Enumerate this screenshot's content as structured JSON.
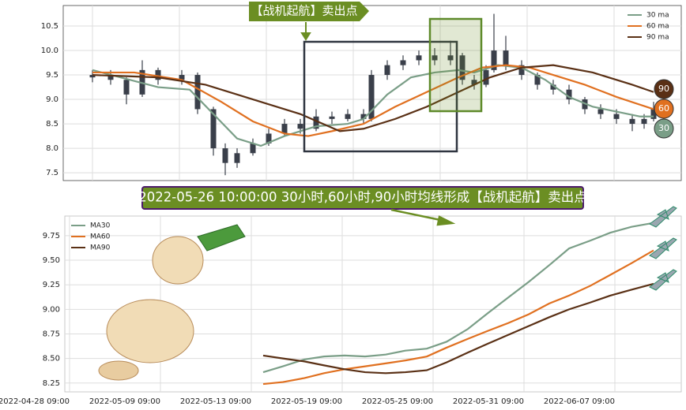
{
  "chart_data": [
    {
      "type": "candlestick",
      "annotation": "【战机起航】卖出点",
      "legend": "upper right",
      "grid": true,
      "xlim": [
        -37,
        745
      ],
      "xticks": [
        0,
        110,
        220,
        330,
        440,
        550,
        660
      ],
      "ylim": [
        7.34,
        10.92
      ],
      "yticks": [
        7.5,
        {
          "value": 8,
          "label": "8.0"
        },
        8.5,
        {
          "value": 9,
          "label": "9.0"
        },
        9.5,
        {
          "value": 10,
          "label": "10.0"
        },
        10.5
      ],
      "candle_color": "#3a3f4a",
      "x": [
        0,
        23,
        43,
        63,
        83,
        113,
        133,
        153,
        168,
        183,
        203,
        223,
        243,
        263,
        283,
        303,
        323,
        343,
        353,
        373,
        393,
        413,
        433,
        453,
        468,
        483,
        498,
        508,
        523,
        543,
        563,
        583,
        603,
        623,
        643,
        663,
        683,
        698,
        710
      ],
      "open": [
        9.45,
        9.5,
        9.4,
        9.1,
        9.6,
        9.4,
        9.5,
        8.8,
        8.0,
        7.7,
        7.9,
        8.1,
        8.3,
        8.5,
        8.4,
        8.65,
        8.6,
        8.7,
        8.6,
        9.5,
        9.7,
        9.8,
        9.9,
        9.8,
        9.9,
        9.4,
        9.3,
        9.6,
        10.0,
        9.7,
        9.5,
        9.3,
        9.2,
        9.0,
        8.8,
        8.7,
        8.6,
        8.5,
        8.6
      ],
      "high": [
        9.6,
        9.6,
        9.45,
        9.8,
        9.65,
        9.6,
        9.55,
        8.85,
        8.1,
        8.0,
        8.2,
        8.4,
        8.6,
        8.6,
        8.8,
        8.75,
        8.8,
        8.8,
        9.6,
        9.8,
        9.9,
        10.0,
        10.05,
        10.2,
        9.95,
        9.5,
        9.7,
        10.75,
        10.3,
        9.8,
        9.55,
        9.4,
        9.3,
        9.05,
        8.9,
        8.8,
        8.7,
        8.7,
        8.95
      ],
      "low": [
        9.35,
        9.3,
        8.9,
        9.05,
        9.3,
        9.3,
        8.7,
        7.85,
        7.45,
        7.6,
        7.85,
        8.05,
        8.25,
        8.3,
        8.35,
        8.5,
        8.55,
        8.5,
        8.55,
        9.4,
        9.6,
        9.7,
        9.7,
        9.7,
        9.3,
        9.2,
        9.25,
        9.55,
        9.6,
        9.4,
        9.2,
        9.1,
        8.9,
        8.7,
        8.6,
        8.5,
        8.35,
        8.4,
        8.55
      ],
      "close": [
        9.5,
        9.4,
        9.1,
        9.6,
        9.4,
        9.5,
        8.8,
        8.0,
        7.7,
        7.9,
        8.1,
        8.3,
        8.5,
        8.4,
        8.65,
        8.6,
        8.7,
        8.6,
        9.5,
        9.7,
        9.8,
        9.9,
        9.8,
        9.9,
        9.4,
        9.3,
        9.6,
        10.0,
        9.7,
        9.5,
        9.3,
        9.2,
        9.0,
        8.8,
        8.7,
        8.6,
        8.5,
        8.6,
        8.8
      ],
      "series": [
        {
          "name": "30 ma",
          "badge": "30",
          "color": "#7a9e87",
          "x": [
            0,
            83,
            123,
            153,
            183,
            213,
            243,
            283,
            323,
            343,
            373,
            403,
            433,
            463,
            483,
            513,
            543,
            573,
            603,
            633,
            663,
            693,
            710
          ],
          "values": [
            9.6,
            9.25,
            9.2,
            8.7,
            8.2,
            8.05,
            8.25,
            8.45,
            8.5,
            8.6,
            9.1,
            9.45,
            9.55,
            9.6,
            9.55,
            9.7,
            9.65,
            9.4,
            9.05,
            8.85,
            8.75,
            8.65,
            8.65
          ]
        },
        {
          "name": "60 ma",
          "badge": "60",
          "color": "#e07020",
          "x": [
            0,
            53,
            113,
            163,
            203,
            243,
            273,
            303,
            343,
            383,
            423,
            463,
            493,
            523,
            553,
            583,
            623,
            663,
            710
          ],
          "values": [
            9.55,
            9.55,
            9.4,
            8.95,
            8.55,
            8.3,
            8.25,
            8.35,
            8.5,
            8.85,
            9.15,
            9.45,
            9.65,
            9.7,
            9.65,
            9.5,
            9.3,
            9.05,
            8.8
          ]
        },
        {
          "name": "90 ma",
          "badge": "90",
          "color": "#5a3015",
          "x": [
            0,
            83,
            143,
            203,
            263,
            313,
            343,
            383,
            423,
            463,
            503,
            543,
            583,
            633,
            683,
            710
          ],
          "values": [
            9.5,
            9.45,
            9.3,
            9.0,
            8.7,
            8.35,
            8.4,
            8.6,
            8.85,
            9.15,
            9.45,
            9.65,
            9.7,
            9.55,
            9.3,
            9.15
          ]
        }
      ]
    },
    {
      "type": "line",
      "annotation": "2022-05-26 10:00:00 30小时,60小时,90小时均线形成【战机起航】卖出点",
      "legend": "upper left",
      "grid": true,
      "xlim": [
        -6,
        774
      ],
      "xticks": [
        {
          "value": 0,
          "label": "2022-04-28 09:00"
        },
        {
          "value": 115,
          "label": "2022-05-09 09:00"
        },
        {
          "value": 230,
          "label": "2022-05-13 09:00"
        },
        {
          "value": 345,
          "label": "2022-05-19 09:00"
        },
        {
          "value": 460,
          "label": "2022-05-25 09:00"
        },
        {
          "value": 575,
          "label": "2022-05-31 09:00"
        },
        {
          "value": 690,
          "label": "2022-06-07 09:00"
        }
      ],
      "ylim": [
        8.16,
        9.95
      ],
      "yticks": [
        8.25,
        {
          "value": 8.5,
          "label": "8.50"
        },
        8.75,
        {
          "value": 9,
          "label": "9.00"
        },
        9.25,
        {
          "value": 9.5,
          "label": "9.50"
        },
        9.75
      ],
      "series": [
        {
          "name": "MA30",
          "color": "#7a9e87",
          "x": [
            245,
            270,
            297,
            322,
            348,
            374,
            400,
            425,
            452,
            477,
            504,
            529,
            555,
            581,
            607,
            632,
            659,
            684,
            711,
            739
          ],
          "values": [
            8.36,
            8.42,
            8.49,
            8.52,
            8.53,
            8.52,
            8.54,
            8.58,
            8.6,
            8.67,
            8.8,
            8.96,
            9.12,
            9.28,
            9.45,
            9.62,
            9.7,
            9.78,
            9.84,
            9.88
          ]
        },
        {
          "name": "MA60",
          "color": "#e07020",
          "x": [
            245,
            270,
            297,
            322,
            348,
            374,
            400,
            425,
            452,
            477,
            504,
            529,
            555,
            581,
            607,
            632,
            659,
            684,
            711,
            739
          ],
          "values": [
            8.24,
            8.26,
            8.3,
            8.35,
            8.39,
            8.42,
            8.45,
            8.48,
            8.52,
            8.61,
            8.7,
            8.78,
            8.86,
            8.95,
            9.06,
            9.14,
            9.24,
            9.35,
            9.47,
            9.6
          ]
        },
        {
          "name": "MA90",
          "color": "#5a3015",
          "x": [
            245,
            270,
            297,
            322,
            348,
            374,
            400,
            425,
            452,
            477,
            504,
            529,
            555,
            581,
            607,
            632,
            659,
            684,
            711,
            739
          ],
          "values": [
            8.53,
            8.5,
            8.47,
            8.43,
            8.39,
            8.36,
            8.35,
            8.36,
            8.38,
            8.46,
            8.56,
            8.65,
            8.74,
            8.83,
            8.92,
            9.0,
            9.07,
            9.14,
            9.2,
            9.26
          ]
        }
      ]
    }
  ]
}
